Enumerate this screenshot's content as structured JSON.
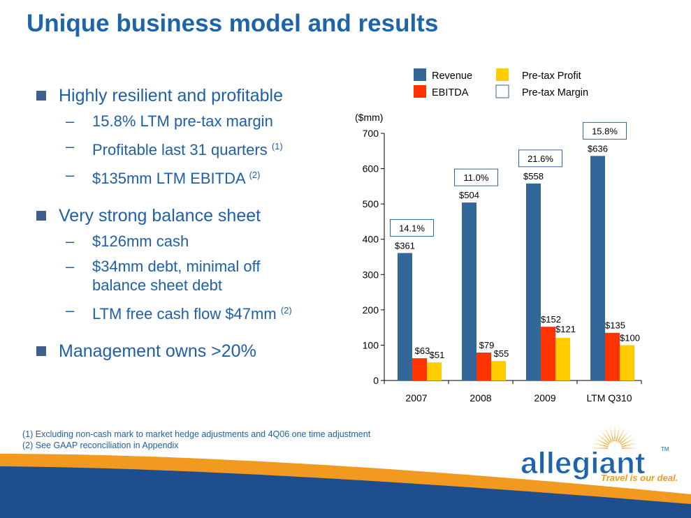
{
  "title": "Unique business model and results",
  "bullets": [
    {
      "text": "Highly resilient and profitable",
      "sub": [
        {
          "text": "15.8% LTM pre-tax margin",
          "sup": ""
        },
        {
          "text": "Profitable last 31 quarters",
          "sup": "(1)"
        },
        {
          "text": "$135mm LTM EBITDA",
          "sup": "(2)"
        }
      ]
    },
    {
      "text": "Very strong balance sheet",
      "sub": [
        {
          "text": "$126mm cash",
          "sup": ""
        },
        {
          "text": "$34mm debt, minimal off balance sheet debt",
          "sup": ""
        },
        {
          "text": "LTM free cash flow $47mm",
          "sup": "(2)"
        }
      ]
    },
    {
      "text": "Management owns >20%",
      "sub": []
    }
  ],
  "footnotes": [
    "(1)  Excluding non-cash mark to market hedge adjustments and 4Q06 one time adjustment",
    "(2)  See GAAP reconciliation in Appendix"
  ],
  "logo": {
    "name": "allegiant",
    "tm": "TM",
    "tagline": "Travel is our deal.",
    "sun_color": "#f7a81b"
  },
  "chart_data": {
    "type": "bar",
    "categories": [
      "2007",
      "2008",
      "2009",
      "LTM Q310"
    ],
    "series": [
      {
        "name": "Revenue",
        "values": [
          361,
          504,
          558,
          636
        ],
        "labels": [
          "$361",
          "$504",
          "$558",
          "$636"
        ],
        "color": "#336699"
      },
      {
        "name": "EBITDA",
        "values": [
          63,
          79,
          152,
          135
        ],
        "labels": [
          "$63",
          "$79",
          "$152",
          "$135"
        ],
        "color": "#ff3300"
      },
      {
        "name": "Pre-tax Profit",
        "values": [
          51,
          55,
          121,
          100
        ],
        "labels": [
          "$51",
          "$55",
          "$121",
          "$100"
        ],
        "color": "#ffcc00"
      }
    ],
    "margin_series": {
      "name": "Pre-tax Margin",
      "labels": [
        "14.1%",
        "11.0%",
        "21.6%",
        "15.8%"
      ]
    },
    "ylabel": "($mm)",
    "ylim": [
      0,
      700
    ],
    "yticks": [
      0,
      100,
      200,
      300,
      400,
      500,
      600,
      700
    ],
    "legend_position": "top",
    "grid": false
  }
}
